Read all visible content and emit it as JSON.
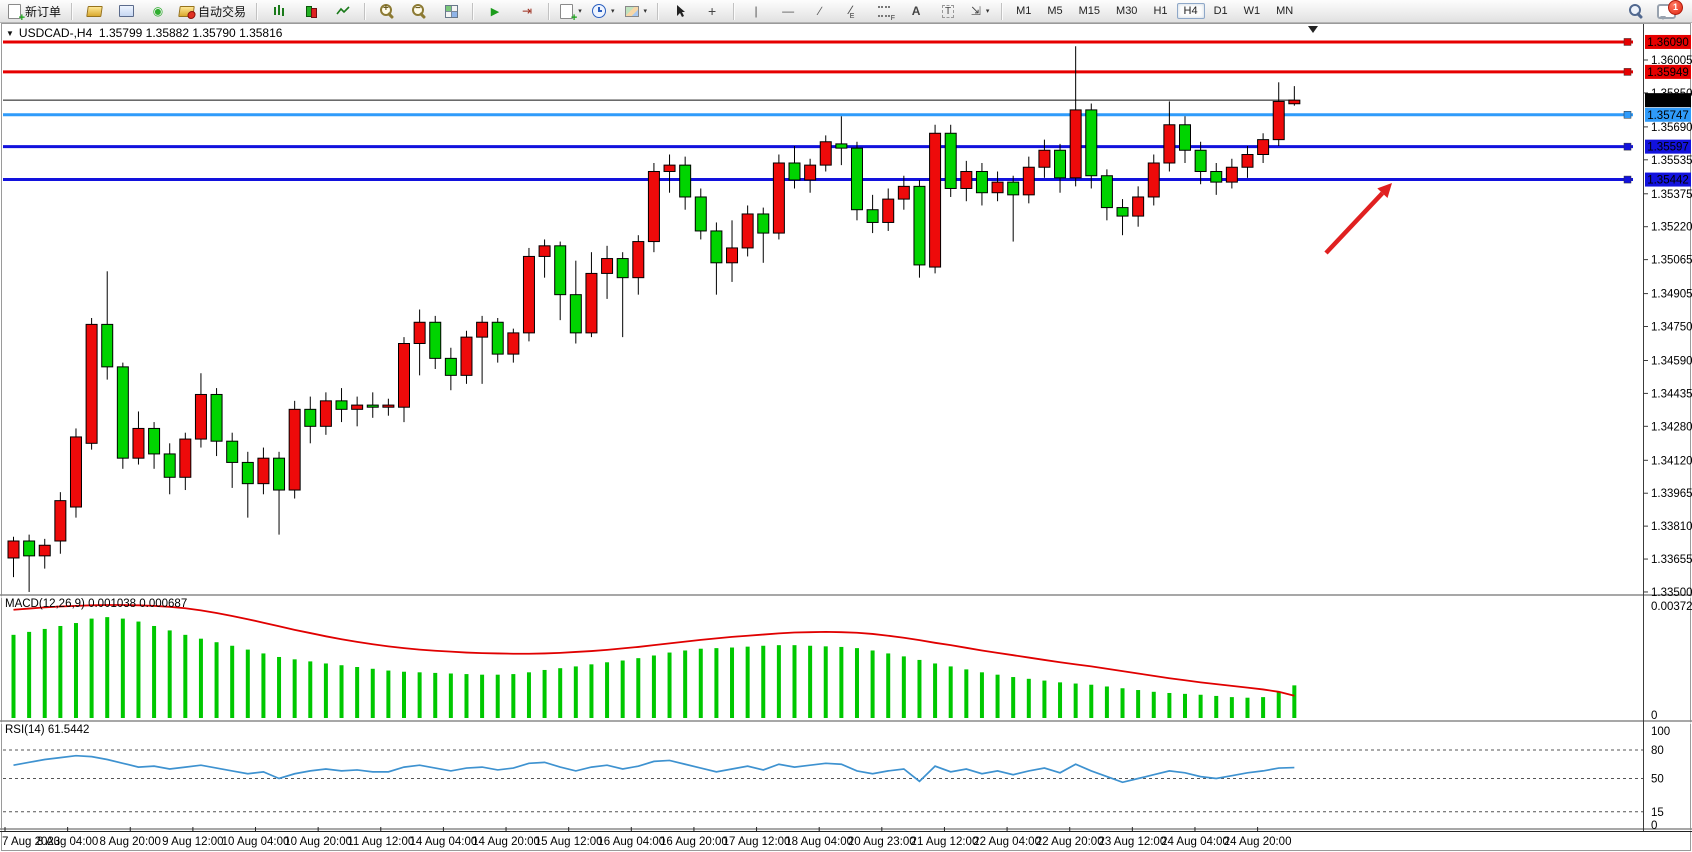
{
  "toolbar": {
    "new_order_label": "新订单",
    "auto_trading_label": "自动交易",
    "timeframes": [
      "M1",
      "M5",
      "M15",
      "M30",
      "H1",
      "H4",
      "D1",
      "W1",
      "MN"
    ],
    "active_timeframe": "H4",
    "notification_count": "1",
    "icons": [
      "new-order",
      "gold-box",
      "terminal",
      "signal",
      "auto-trading",
      "bar-chart",
      "candle-chart",
      "line-chart",
      "zoom-in",
      "zoom-out",
      "tile-windows",
      "auto-scroll",
      "chart-shift",
      "indicators",
      "periods",
      "templates",
      "cursor",
      "crosshair",
      "vertical-line",
      "horizontal-line",
      "trendline",
      "equidistant-channel",
      "fibonacci",
      "text",
      "text-label",
      "arrows",
      "search",
      "notifications"
    ]
  },
  "chart": {
    "title": "USDCAD-,H4  1.35799 1.35882 1.35790 1.35816",
    "symbol": "USDCAD-",
    "period": "H4"
  },
  "chart_data": {
    "type": "candlestick",
    "title": "USDCAD- H4",
    "ohlc_display": {
      "open": "1.35799",
      "high": "1.35882",
      "low": "1.35790",
      "close": "1.35816"
    },
    "price_ticks": [
      "1.36005",
      "1.35850",
      "1.35690",
      "1.35535",
      "1.35375",
      "1.35220",
      "1.35065",
      "1.34905",
      "1.34750",
      "1.34590",
      "1.34435",
      "1.34280",
      "1.34120",
      "1.33965",
      "1.33810",
      "1.33655",
      "1.33500"
    ],
    "time_labels": [
      "7 Aug 2023",
      "8 Aug 04:00",
      "8 Aug 20:00",
      "9 Aug 12:00",
      "10 Aug 04:00",
      "10 Aug 20:00",
      "11 Aug 12:00",
      "14 Aug 04:00",
      "14 Aug 20:00",
      "15 Aug 12:00",
      "16 Aug 04:00",
      "16 Aug 20:00",
      "17 Aug 12:00",
      "18 Aug 04:00",
      "20 Aug 23:00",
      "21 Aug 12:00",
      "22 Aug 04:00",
      "22 Aug 20:00",
      "23 Aug 12:00",
      "24 Aug 04:00",
      "24 Aug 20:00"
    ],
    "bid": {
      "price": 1.35816,
      "label": "1.35816",
      "color": "#000000"
    },
    "hlines": [
      {
        "price": 1.3609,
        "label": "1.36090",
        "color": "#e60000"
      },
      {
        "price": 1.35949,
        "label": "1.35949",
        "color": "#e60000"
      },
      {
        "price": 1.35747,
        "label": "1.35747",
        "color": "#2f9bfa"
      },
      {
        "price": 1.35597,
        "label": "1.35597",
        "color": "#1212dd"
      },
      {
        "price": 1.35442,
        "label": "1.35442",
        "color": "#1212dd"
      }
    ],
    "colors": {
      "bull": "#ee0a0a",
      "bear": "#00d400",
      "wick": "#000000",
      "macd_hist": "#00c800",
      "macd_signal": "#e00000",
      "rsi_line": "#3e92d0",
      "arrow": "#e02020"
    },
    "candles": [
      [
        1.3366,
        1.3376,
        1.3357,
        1.3374
      ],
      [
        1.3374,
        1.3377,
        1.335,
        1.3367
      ],
      [
        1.3367,
        1.3375,
        1.3361,
        1.3372
      ],
      [
        1.3374,
        1.3397,
        1.3368,
        1.3393
      ],
      [
        1.339,
        1.3427,
        1.3385,
        1.3423
      ],
      [
        1.342,
        1.3479,
        1.3417,
        1.3476
      ],
      [
        1.3476,
        1.3501,
        1.345,
        1.3456
      ],
      [
        1.3456,
        1.3458,
        1.3408,
        1.3413
      ],
      [
        1.3413,
        1.3435,
        1.341,
        1.3427
      ],
      [
        1.3427,
        1.343,
        1.3408,
        1.3415
      ],
      [
        1.3415,
        1.342,
        1.3396,
        1.3404
      ],
      [
        1.3404,
        1.3425,
        1.3398,
        1.3422
      ],
      [
        1.3422,
        1.3453,
        1.3418,
        1.3443
      ],
      [
        1.3443,
        1.3446,
        1.3414,
        1.3421
      ],
      [
        1.3421,
        1.3425,
        1.3399,
        1.3411
      ],
      [
        1.3411,
        1.3416,
        1.3385,
        1.3401
      ],
      [
        1.3401,
        1.3418,
        1.3396,
        1.3413
      ],
      [
        1.3413,
        1.3416,
        1.3377,
        1.3398
      ],
      [
        1.3398,
        1.344,
        1.3394,
        1.3436
      ],
      [
        1.3436,
        1.3442,
        1.342,
        1.3428
      ],
      [
        1.3428,
        1.3444,
        1.3424,
        1.344
      ],
      [
        1.344,
        1.3446,
        1.343,
        1.3436
      ],
      [
        1.3436,
        1.3442,
        1.3428,
        1.3438
      ],
      [
        1.3438,
        1.3444,
        1.3432,
        1.3437
      ],
      [
        1.3437,
        1.3441,
        1.3433,
        1.3438
      ],
      [
        1.3437,
        1.347,
        1.343,
        1.3467
      ],
      [
        1.3467,
        1.3483,
        1.3452,
        1.3477
      ],
      [
        1.3477,
        1.348,
        1.3455,
        1.346
      ],
      [
        1.346,
        1.3465,
        1.3445,
        1.3452
      ],
      [
        1.3452,
        1.3473,
        1.3448,
        1.347
      ],
      [
        1.347,
        1.348,
        1.3448,
        1.3477
      ],
      [
        1.3477,
        1.3479,
        1.3458,
        1.3462
      ],
      [
        1.3462,
        1.3474,
        1.3458,
        1.3472
      ],
      [
        1.3472,
        1.3512,
        1.3468,
        1.3508
      ],
      [
        1.3508,
        1.3516,
        1.3498,
        1.3513
      ],
      [
        1.3513,
        1.3515,
        1.3478,
        1.349
      ],
      [
        1.349,
        1.3506,
        1.3467,
        1.3472
      ],
      [
        1.3472,
        1.351,
        1.347,
        1.35
      ],
      [
        1.35,
        1.3513,
        1.3488,
        1.3507
      ],
      [
        1.3507,
        1.351,
        1.347,
        1.3498
      ],
      [
        1.3498,
        1.3518,
        1.349,
        1.3515
      ],
      [
        1.3515,
        1.3552,
        1.351,
        1.3548
      ],
      [
        1.3548,
        1.3556,
        1.3538,
        1.3551
      ],
      [
        1.3551,
        1.3555,
        1.353,
        1.3536
      ],
      [
        1.3536,
        1.354,
        1.3516,
        1.352
      ],
      [
        1.352,
        1.3524,
        1.349,
        1.3505
      ],
      [
        1.3505,
        1.3525,
        1.3496,
        1.3512
      ],
      [
        1.3512,
        1.3532,
        1.3508,
        1.3528
      ],
      [
        1.3528,
        1.3531,
        1.3505,
        1.3519
      ],
      [
        1.3519,
        1.3556,
        1.3516,
        1.3552
      ],
      [
        1.3552,
        1.356,
        1.354,
        1.3544
      ],
      [
        1.3544,
        1.3554,
        1.3538,
        1.3551
      ],
      [
        1.3551,
        1.3565,
        1.3548,
        1.3562
      ],
      [
        1.3561,
        1.3574,
        1.3551,
        1.3559
      ],
      [
        1.3559,
        1.3562,
        1.3525,
        1.353
      ],
      [
        1.353,
        1.3537,
        1.3519,
        1.3524
      ],
      [
        1.3524,
        1.354,
        1.352,
        1.3535
      ],
      [
        1.3535,
        1.3546,
        1.353,
        1.3541
      ],
      [
        1.3541,
        1.3544,
        1.3498,
        1.3504
      ],
      [
        1.3503,
        1.357,
        1.35,
        1.3566
      ],
      [
        1.3566,
        1.357,
        1.3536,
        1.354
      ],
      [
        1.354,
        1.3553,
        1.3534,
        1.3548
      ],
      [
        1.3548,
        1.3552,
        1.3532,
        1.3538
      ],
      [
        1.3538,
        1.3548,
        1.3534,
        1.3543
      ],
      [
        1.3543,
        1.3546,
        1.3515,
        1.3537
      ],
      [
        1.3537,
        1.3555,
        1.3533,
        1.355
      ],
      [
        1.355,
        1.3563,
        1.3545,
        1.3558
      ],
      [
        1.3558,
        1.3561,
        1.3538,
        1.3545
      ],
      [
        1.3545,
        1.3607,
        1.3541,
        1.3577
      ],
      [
        1.3577,
        1.358,
        1.354,
        1.3546
      ],
      [
        1.3546,
        1.3549,
        1.3525,
        1.3531
      ],
      [
        1.3531,
        1.3535,
        1.3518,
        1.3527
      ],
      [
        1.3527,
        1.3541,
        1.3522,
        1.3536
      ],
      [
        1.3536,
        1.3556,
        1.3532,
        1.3552
      ],
      [
        1.3552,
        1.3581,
        1.3548,
        1.357
      ],
      [
        1.357,
        1.3574,
        1.3552,
        1.3558
      ],
      [
        1.3558,
        1.3562,
        1.3542,
        1.3548
      ],
      [
        1.3548,
        1.3552,
        1.3537,
        1.3543
      ],
      [
        1.3543,
        1.3554,
        1.354,
        1.355
      ],
      [
        1.355,
        1.356,
        1.3545,
        1.3556
      ],
      [
        1.3556,
        1.3566,
        1.3552,
        1.3563
      ],
      [
        1.3563,
        1.359,
        1.356,
        1.3581
      ],
      [
        1.35799,
        1.35882,
        1.3579,
        1.35816
      ]
    ],
    "indicators": {
      "macd": {
        "label": "MACD(12,26,9) 0.001038 0.000687",
        "axis": [
          "0.003727",
          "0"
        ],
        "values": [
          0.00275,
          0.00285,
          0.00295,
          0.00305,
          0.00315,
          0.0033,
          0.00335,
          0.0033,
          0.0032,
          0.00305,
          0.0029,
          0.00275,
          0.00262,
          0.0025,
          0.00238,
          0.00225,
          0.00212,
          0.002,
          0.00192,
          0.00185,
          0.00178,
          0.00172,
          0.00166,
          0.0016,
          0.00154,
          0.0015,
          0.00148,
          0.00146,
          0.00144,
          0.00142,
          0.0014,
          0.0014,
          0.00142,
          0.00148,
          0.00156,
          0.00162,
          0.00168,
          0.00175,
          0.00182,
          0.00188,
          0.00196,
          0.00205,
          0.00215,
          0.00222,
          0.00228,
          0.0023,
          0.00232,
          0.00235,
          0.00238,
          0.0024,
          0.0024,
          0.00238,
          0.00236,
          0.00234,
          0.0023,
          0.00222,
          0.00212,
          0.00202,
          0.0019,
          0.00178,
          0.00168,
          0.00158,
          0.00148,
          0.0014,
          0.00132,
          0.00126,
          0.0012,
          0.00114,
          0.0011,
          0.00106,
          0.001,
          0.00094,
          0.00088,
          0.00082,
          0.00078,
          0.00075,
          0.00072,
          0.00068,
          0.00064,
          0.00062,
          0.00064,
          0.0008,
          0.001038
        ],
        "signal": [
          0.0036,
          0.00364,
          0.00368,
          0.00371,
          0.00373,
          0.00375,
          0.00376,
          0.00376,
          0.00375,
          0.00373,
          0.0037,
          0.00365,
          0.00358,
          0.00349,
          0.00339,
          0.00328,
          0.00316,
          0.00304,
          0.00292,
          0.00281,
          0.0027,
          0.0026,
          0.00251,
          0.00243,
          0.00236,
          0.0023,
          0.00225,
          0.00221,
          0.00218,
          0.00215,
          0.00213,
          0.00212,
          0.00211,
          0.00211,
          0.00212,
          0.00214,
          0.00217,
          0.0022,
          0.00224,
          0.00229,
          0.00234,
          0.0024,
          0.00246,
          0.00252,
          0.00258,
          0.00263,
          0.00268,
          0.00272,
          0.00276,
          0.0028,
          0.00283,
          0.00284,
          0.00285,
          0.00284,
          0.00282,
          0.00278,
          0.00272,
          0.00265,
          0.00257,
          0.00248,
          0.0024,
          0.00231,
          0.00222,
          0.00214,
          0.00206,
          0.00198,
          0.0019,
          0.00182,
          0.00175,
          0.00168,
          0.0016,
          0.00152,
          0.00144,
          0.00136,
          0.00128,
          0.00121,
          0.00114,
          0.00108,
          0.00102,
          0.00096,
          0.0009,
          0.00082,
          0.000687
        ]
      },
      "rsi": {
        "label": "RSI(14) 61.5442",
        "axis": [
          "100",
          "80",
          "50",
          "15",
          "0"
        ],
        "levels": [
          80,
          50,
          15
        ],
        "values": [
          64,
          67,
          70,
          72,
          74,
          73,
          70,
          66,
          62,
          63,
          60,
          62,
          64,
          61,
          58,
          55,
          57,
          50,
          55,
          58,
          60,
          58,
          59,
          57,
          57,
          62,
          64,
          61,
          58,
          61,
          62,
          59,
          61,
          66,
          67,
          62,
          58,
          62,
          64,
          60,
          63,
          68,
          69,
          65,
          61,
          57,
          60,
          63,
          59,
          65,
          62,
          64,
          66,
          65,
          58,
          55,
          58,
          60,
          47,
          63,
          57,
          60,
          55,
          58,
          54,
          58,
          61,
          56,
          65,
          58,
          52,
          46,
          50,
          54,
          58,
          56,
          52,
          50,
          53,
          56,
          58,
          61,
          61.5
        ]
      }
    },
    "annotations": {
      "arrow": {
        "from": [
          1326,
          253
        ],
        "to": [
          1392,
          183
        ],
        "color": "#e02020"
      }
    },
    "layout_hints": {
      "grid": false,
      "bull_is_red": true,
      "panes": [
        "price",
        "macd",
        "rsi"
      ]
    }
  }
}
